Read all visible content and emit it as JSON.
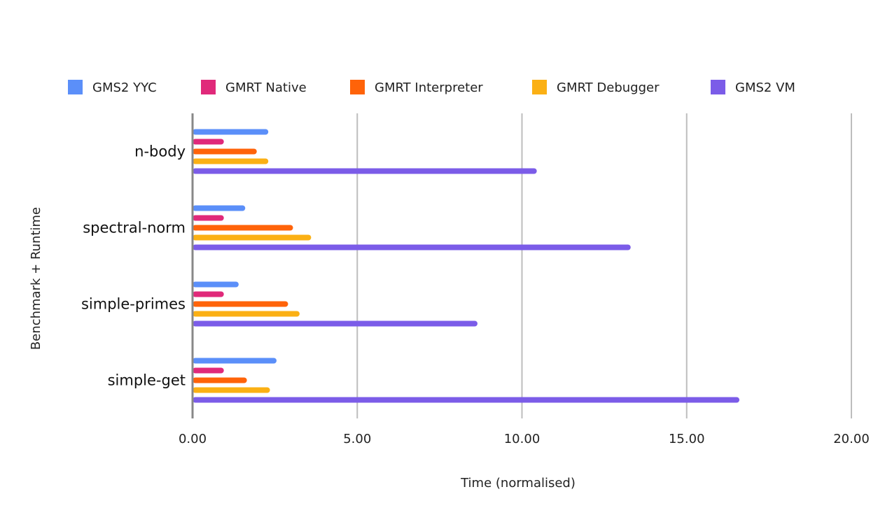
{
  "chart_data": {
    "type": "bar",
    "orientation": "horizontal",
    "categories": [
      "n-body",
      "spectral-norm",
      "simple-primes",
      "simple-get"
    ],
    "series": [
      {
        "name": "GMS2 YYC",
        "color": "#5b8ff9",
        "values": [
          2.3,
          1.6,
          1.4,
          2.55
        ]
      },
      {
        "name": "GMRT Native",
        "color": "#e0297a",
        "values": [
          0.95,
          0.95,
          0.95,
          0.95
        ]
      },
      {
        "name": "GMRT Interpreter",
        "color": "#ff6309",
        "values": [
          1.95,
          3.05,
          2.9,
          1.65
        ]
      },
      {
        "name": "GMRT Debugger",
        "color": "#fbb014",
        "values": [
          2.3,
          3.6,
          3.25,
          2.35
        ]
      },
      {
        "name": "GMS2 VM",
        "color": "#7b5ce8",
        "values": [
          10.45,
          13.3,
          8.65,
          16.6
        ]
      }
    ],
    "xlabel": "Time (normalised)",
    "ylabel": "Benchmark + Runtime",
    "xlim": [
      0,
      20
    ],
    "xticks": [
      "0.00",
      "5.00",
      "10.00",
      "15.00",
      "20.00"
    ],
    "grid": true,
    "legend_position": "top"
  }
}
